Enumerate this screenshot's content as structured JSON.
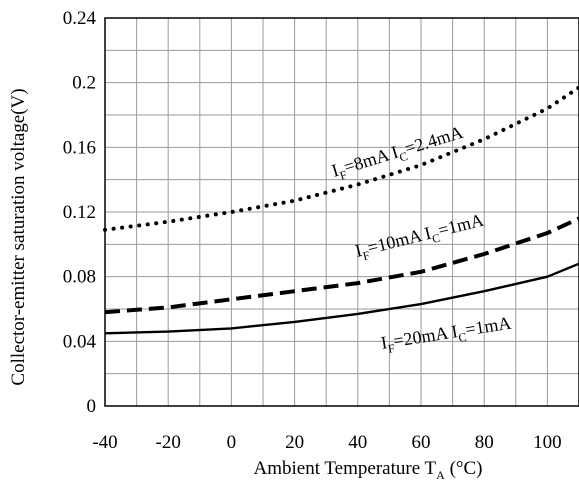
{
  "chart_data": {
    "type": "line",
    "xlabel": {
      "main": "Ambient Temperature T",
      "sub": "A",
      "suffix": " (°C)"
    },
    "ylabel": "Collector-emitter saturation voltage(V)",
    "xlim": [
      -40,
      110
    ],
    "ylim": [
      0,
      0.24
    ],
    "x_ticks": [
      -40,
      -20,
      0,
      20,
      40,
      60,
      80,
      100
    ],
    "x_tick_labels": [
      "-40",
      "-20",
      "0",
      "20",
      "40",
      "60",
      "80",
      "100"
    ],
    "y_ticks": [
      0,
      0.04,
      0.08,
      0.12,
      0.16,
      0.2,
      0.24
    ],
    "y_tick_labels": [
      "0",
      "0.04",
      "0.08",
      "0.12",
      "0.16",
      "0.2",
      "0.24"
    ],
    "grid": true,
    "series": [
      {
        "style": "dotted",
        "label": [
          {
            "t": "I"
          },
          {
            "t": "F",
            "sub": true
          },
          {
            "t": "=8mA I"
          },
          {
            "t": "C",
            "sub": true
          },
          {
            "t": "=2.4mA"
          }
        ],
        "x": [
          -40,
          -20,
          0,
          20,
          40,
          60,
          80,
          100,
          110
        ],
        "y": [
          0.109,
          0.114,
          0.12,
          0.127,
          0.137,
          0.149,
          0.165,
          0.184,
          0.197
        ]
      },
      {
        "style": "dashed",
        "label": [
          {
            "t": "I"
          },
          {
            "t": "F",
            "sub": true
          },
          {
            "t": "=10mA I"
          },
          {
            "t": "C",
            "sub": true
          },
          {
            "t": "=1mA"
          }
        ],
        "x": [
          -40,
          -20,
          0,
          20,
          40,
          60,
          80,
          100,
          110
        ],
        "y": [
          0.058,
          0.061,
          0.066,
          0.071,
          0.076,
          0.083,
          0.094,
          0.107,
          0.116
        ]
      },
      {
        "style": "solid",
        "label": [
          {
            "t": "I"
          },
          {
            "t": "F",
            "sub": true
          },
          {
            "t": "=20mA I"
          },
          {
            "t": "C",
            "sub": true
          },
          {
            "t": "=1mA"
          }
        ],
        "x": [
          -40,
          -20,
          0,
          20,
          40,
          60,
          80,
          100,
          110
        ],
        "y": [
          0.045,
          0.046,
          0.048,
          0.052,
          0.057,
          0.063,
          0.071,
          0.08,
          0.088
        ]
      }
    ]
  }
}
